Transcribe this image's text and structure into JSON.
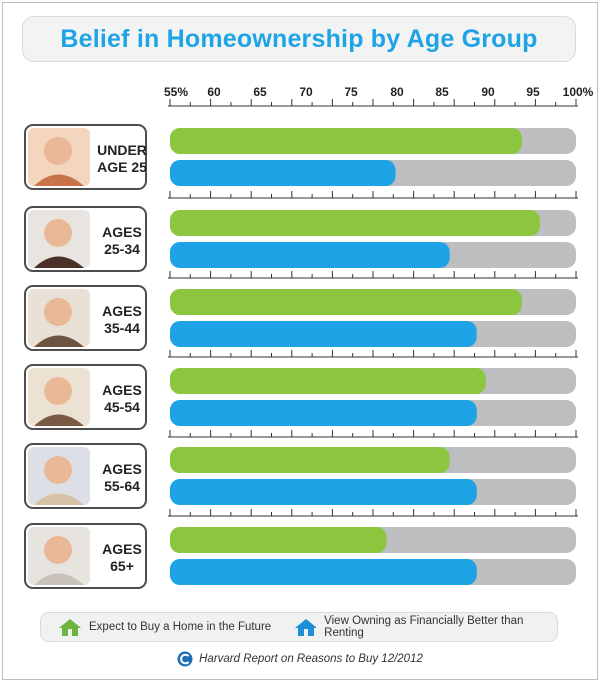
{
  "chart_data": {
    "type": "bar",
    "orientation": "horizontal",
    "title": "Belief in Homeownership by Age Group",
    "x_ticks": [
      "55%",
      "60",
      "65",
      "70",
      "75",
      "80",
      "85",
      "90",
      "95",
      "100%"
    ],
    "xlim": [
      55,
      100
    ],
    "categories": [
      [
        "UNDER",
        "AGE 25"
      ],
      [
        "AGES",
        "25-34"
      ],
      [
        "AGES",
        "35-44"
      ],
      [
        "AGES",
        "45-54"
      ],
      [
        "AGES",
        "55-64"
      ],
      [
        "AGES",
        "65+"
      ]
    ],
    "series": [
      {
        "name": "Expect to Buy a Home in the Future",
        "color": "#8cc63f",
        "values": [
          94,
          96,
          94,
          90,
          86,
          79
        ]
      },
      {
        "name": "View Owning as Financially Better than Renting",
        "color": "#1ea3e6",
        "values": [
          80,
          86,
          89,
          89,
          89,
          89
        ]
      }
    ],
    "track_color": "#bcbec0",
    "legend_placement": "bottom"
  },
  "source": "Harvard Report on Reasons to Buy 12/2012",
  "icons": {
    "legend_series_1": "house-icon",
    "legend_series_2": "house-icon",
    "source": "logo-icon"
  }
}
